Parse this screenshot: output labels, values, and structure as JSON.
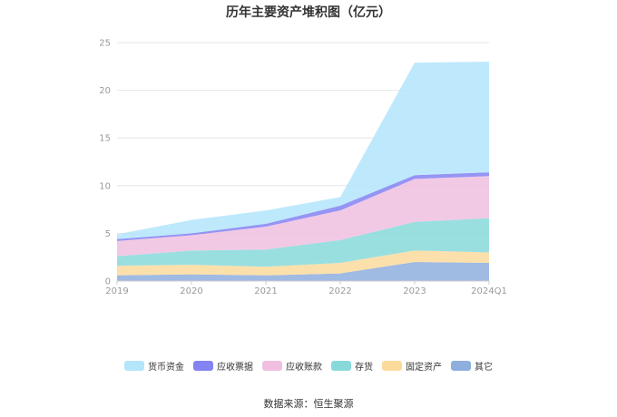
{
  "title": "历年主要资产堆积图（亿元）",
  "source": "数据来源：恒生聚源",
  "chart_data": {
    "type": "area",
    "stacked": true,
    "categories": [
      "2019",
      "2020",
      "2021",
      "2022",
      "2023",
      "2024Q1"
    ],
    "ylim": [
      0,
      25
    ],
    "yticks": [
      0,
      5,
      10,
      15,
      20,
      25
    ],
    "grid": true,
    "legend": "bottom",
    "series": [
      {
        "name": "其它",
        "color": "#8eaede",
        "values": [
          0.6,
          0.7,
          0.6,
          0.8,
          2.0,
          1.9
        ]
      },
      {
        "name": "固定资产",
        "color": "#fbdb9c",
        "values": [
          1.0,
          1.0,
          0.9,
          1.1,
          1.2,
          1.1
        ]
      },
      {
        "name": "存货",
        "color": "#88d9da",
        "values": [
          1.0,
          1.5,
          1.8,
          2.4,
          3.0,
          3.6
        ]
      },
      {
        "name": "应收账款",
        "color": "#f0bfe0",
        "values": [
          1.6,
          1.6,
          2.4,
          3.1,
          4.5,
          4.4
        ]
      },
      {
        "name": "应收票据",
        "color": "#8383f2",
        "values": [
          0.2,
          0.2,
          0.3,
          0.5,
          0.4,
          0.4
        ]
      },
      {
        "name": "货币资金",
        "color": "#b3e5fb",
        "values": [
          0.5,
          1.4,
          1.4,
          0.9,
          11.8,
          11.6
        ]
      }
    ],
    "legend_order": [
      "货币资金",
      "应收票据",
      "应收账款",
      "存货",
      "固定资产",
      "其它"
    ]
  }
}
